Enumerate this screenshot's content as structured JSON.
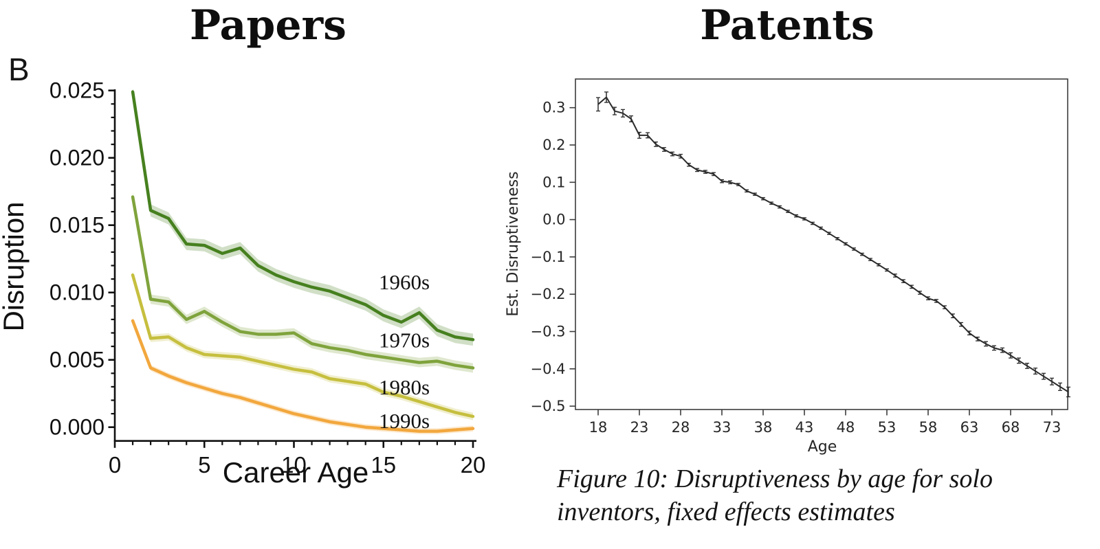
{
  "chart_data": [
    {
      "type": "line",
      "panel_label": "B",
      "title": "Papers",
      "xlabel": "Career Age",
      "ylabel": "Disruption",
      "xlim": [
        0,
        20
      ],
      "ylim": [
        -0.001,
        0.025
      ],
      "xticks": [
        0,
        5,
        10,
        15,
        20
      ],
      "ytick_labels": [
        "0.000",
        "0.005",
        "0.010",
        "0.015",
        "0.020",
        "0.025"
      ],
      "ytick_values": [
        0.0,
        0.005,
        0.01,
        0.015,
        0.02,
        0.025
      ],
      "grid": false,
      "legend_position": "inline-right",
      "x": [
        1,
        2,
        3,
        4,
        5,
        6,
        7,
        8,
        9,
        10,
        11,
        12,
        13,
        14,
        15,
        16,
        17,
        18,
        19,
        20
      ],
      "series": [
        {
          "name": "1960s",
          "color": "#46801f",
          "band_halfwidth": 0.00045,
          "label_y": 0.0108,
          "values": [
            0.0249,
            0.0161,
            0.0155,
            0.0136,
            0.0135,
            0.0129,
            0.0133,
            0.012,
            0.0113,
            0.0108,
            0.0104,
            0.0101,
            0.0096,
            0.0091,
            0.0083,
            0.0078,
            0.0085,
            0.0072,
            0.0067,
            0.0065
          ]
        },
        {
          "name": "1970s",
          "color": "#7fa33c",
          "band_halfwidth": 0.00035,
          "label_y": 0.0065,
          "values": [
            0.0171,
            0.0095,
            0.0093,
            0.008,
            0.0086,
            0.0078,
            0.0071,
            0.0069,
            0.0069,
            0.007,
            0.0062,
            0.0059,
            0.0057,
            0.0054,
            0.0052,
            0.005,
            0.0048,
            0.0049,
            0.0046,
            0.0044
          ]
        },
        {
          "name": "1980s",
          "color": "#c6bf3f",
          "band_halfwidth": 0.00028,
          "label_y": 0.003,
          "values": [
            0.0113,
            0.0066,
            0.0067,
            0.0059,
            0.0054,
            0.0053,
            0.0052,
            0.0049,
            0.0046,
            0.0043,
            0.0041,
            0.0036,
            0.0034,
            0.0032,
            0.0026,
            0.0023,
            0.0019,
            0.0015,
            0.0011,
            0.0008
          ]
        },
        {
          "name": "1990s",
          "color": "#f2a73d",
          "band_halfwidth": 0.00022,
          "label_y": 0.0005,
          "values": [
            0.0079,
            0.0044,
            0.0038,
            0.0033,
            0.0029,
            0.0025,
            0.0022,
            0.0018,
            0.0014,
            0.001,
            0.0007,
            0.0004,
            0.0002,
            0.0,
            -0.0001,
            -0.0002,
            -0.0003,
            -0.0003,
            -0.0002,
            -0.0001
          ]
        }
      ]
    },
    {
      "type": "line",
      "title": "Patents",
      "xlabel": "Age",
      "ylabel": "Est. Disruptiveness",
      "xlim": [
        15.5,
        77
      ],
      "ylim": [
        -0.52,
        0.38
      ],
      "xticks": [
        18,
        23,
        28,
        33,
        38,
        43,
        48,
        53,
        58,
        63,
        68,
        73
      ],
      "yticks": [
        0.3,
        0.2,
        0.1,
        0.0,
        -0.1,
        -0.2,
        -0.3,
        -0.4,
        -0.5
      ],
      "grid": false,
      "color": "#2b2b2b",
      "x": [
        18,
        19,
        20,
        21,
        22,
        23,
        24,
        25,
        26,
        27,
        28,
        29,
        30,
        31,
        32,
        33,
        34,
        35,
        36,
        37,
        38,
        39,
        40,
        41,
        42,
        43,
        44,
        45,
        46,
        47,
        48,
        49,
        50,
        51,
        52,
        53,
        54,
        55,
        56,
        57,
        58,
        59,
        60,
        61,
        62,
        63,
        64,
        65,
        66,
        67,
        68,
        69,
        70,
        71,
        72,
        73,
        74,
        75
      ],
      "values": [
        0.309,
        0.328,
        0.291,
        0.285,
        0.27,
        0.226,
        0.226,
        0.202,
        0.188,
        0.176,
        0.17,
        0.147,
        0.133,
        0.128,
        0.122,
        0.103,
        0.1,
        0.094,
        0.077,
        0.068,
        0.056,
        0.044,
        0.034,
        0.022,
        0.01,
        0.002,
        -0.01,
        -0.023,
        -0.037,
        -0.051,
        -0.065,
        -0.079,
        -0.093,
        -0.107,
        -0.121,
        -0.135,
        -0.15,
        -0.165,
        -0.18,
        -0.196,
        -0.211,
        -0.218,
        -0.235,
        -0.258,
        -0.281,
        -0.304,
        -0.32,
        -0.333,
        -0.344,
        -0.35,
        -0.364,
        -0.378,
        -0.392,
        -0.406,
        -0.42,
        -0.434,
        -0.448,
        -0.462
      ],
      "errors": [
        0.018,
        0.014,
        0.01,
        0.01,
        0.008,
        0.008,
        0.007,
        0.006,
        0.005,
        0.005,
        0.005,
        0.004,
        0.004,
        0.004,
        0.004,
        0.004,
        0.004,
        0.003,
        0.003,
        0.003,
        0.003,
        0.003,
        0.003,
        0.003,
        0.003,
        0.003,
        0.003,
        0.003,
        0.003,
        0.003,
        0.003,
        0.003,
        0.003,
        0.003,
        0.003,
        0.003,
        0.004,
        0.004,
        0.004,
        0.004,
        0.004,
        0.004,
        0.004,
        0.005,
        0.005,
        0.005,
        0.005,
        0.006,
        0.006,
        0.006,
        0.007,
        0.007,
        0.007,
        0.008,
        0.008,
        0.009,
        0.01,
        0.013
      ],
      "caption_lines": [
        "Figure 10: Disruptiveness by age for solo",
        "inventors, fixed effects estimates"
      ]
    }
  ]
}
